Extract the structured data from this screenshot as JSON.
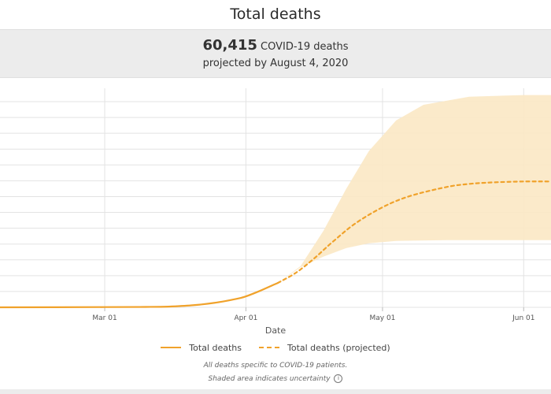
{
  "page": {
    "title": "Total deaths",
    "summary_value": "60,415",
    "summary_unit": "COVID-19 deaths",
    "summary_sub": "projected by August 4, 2020"
  },
  "legend": {
    "solid_label": "Total deaths",
    "dashed_label": "Total deaths (projected)"
  },
  "notes": {
    "line1": "All deaths specific to COVID-19 patients.",
    "line2": "Shaded area indicates uncertainty"
  },
  "colors": {
    "line": "#f0a22b",
    "band": "#fbe8c4",
    "grid": "#e3e3e3"
  },
  "chart_data": {
    "type": "line",
    "title": "Total deaths",
    "xlabel": "Date",
    "ylabel": "",
    "x_ticks": [
      "Mar 01",
      "Apr 01",
      "May 01",
      "Jun 01"
    ],
    "x_range": [
      "2020-02-07",
      "2020-06-07"
    ],
    "y_range": [
      0,
      90000
    ],
    "grid": true,
    "legend_position": "bottom",
    "series": [
      {
        "name": "Total deaths",
        "style": "solid",
        "points": [
          [
            "2020-02-07",
            0
          ],
          [
            "2020-03-01",
            100
          ],
          [
            "2020-03-10",
            150
          ],
          [
            "2020-03-15",
            300
          ],
          [
            "2020-03-20",
            800
          ],
          [
            "2020-03-25",
            1800
          ],
          [
            "2020-03-30",
            3500
          ],
          [
            "2020-04-01",
            4500
          ],
          [
            "2020-04-04",
            6700
          ],
          [
            "2020-04-07",
            9200
          ],
          [
            "2020-04-08",
            10000
          ]
        ]
      },
      {
        "name": "Total deaths (projected)",
        "style": "dashed",
        "points": [
          [
            "2020-04-08",
            10000
          ],
          [
            "2020-04-12",
            14200
          ],
          [
            "2020-04-16",
            20100
          ],
          [
            "2020-04-20",
            26800
          ],
          [
            "2020-04-25",
            34400
          ],
          [
            "2020-05-01",
            41100
          ],
          [
            "2020-05-07",
            45700
          ],
          [
            "2020-05-15",
            49400
          ],
          [
            "2020-05-20",
            50700
          ],
          [
            "2020-05-25",
            51300
          ],
          [
            "2020-06-01",
            51700
          ],
          [
            "2020-06-07",
            51700
          ]
        ]
      }
    ],
    "uncertainty_band": {
      "upper": [
        [
          "2020-04-08",
          10000
        ],
        [
          "2020-04-13",
          16900
        ],
        [
          "2020-04-18",
          31300
        ],
        [
          "2020-04-23",
          48600
        ],
        [
          "2020-04-28",
          64200
        ],
        [
          "2020-05-04",
          76800
        ],
        [
          "2020-05-10",
          83200
        ],
        [
          "2020-05-20",
          86500
        ],
        [
          "2020-06-01",
          87200
        ],
        [
          "2020-06-07",
          87200
        ]
      ],
      "lower": [
        [
          "2020-04-08",
          10000
        ],
        [
          "2020-04-13",
          16400
        ],
        [
          "2020-04-18",
          20800
        ],
        [
          "2020-04-23",
          24300
        ],
        [
          "2020-04-28",
          26300
        ],
        [
          "2020-05-04",
          27300
        ],
        [
          "2020-05-15",
          27600
        ],
        [
          "2020-06-07",
          27600
        ]
      ]
    }
  }
}
